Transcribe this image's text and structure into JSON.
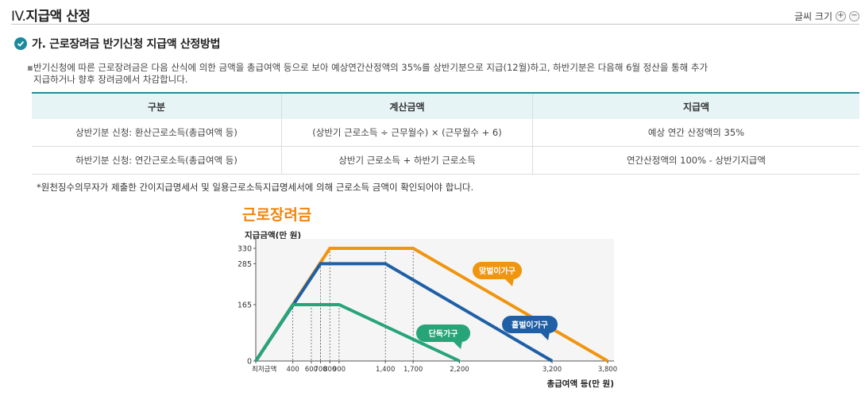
{
  "section": {
    "roman": "IV.",
    "title": "지급액 산정",
    "font_size_label": "글씨 크기",
    "plus": "+",
    "minus": "−"
  },
  "subheading": {
    "title": "가. 근로장려금 반기신청 지급액 산정방법"
  },
  "description": {
    "bullet": "▪",
    "line1": "반기신청에 따른 근로장려금은 다음 산식에 의한 금액을 총급여액 등으로 보아 예상연간산정액의 35%를 상반기분으로 지급(12월)하고, 하반기분은 다음해 6월 정산을 통해 추가",
    "line2": "지급하거나 향후 장려금에서 차감합니다."
  },
  "table": {
    "headers": [
      "구분",
      "계산금액",
      "지급액"
    ],
    "rows": [
      [
        "상반기분 신청: 환산근로소득(총급여액 등)",
        "(상반기 근로소득 ÷ 근무월수) × (근무월수 + 6)",
        "예상 연간 산정액의 35%"
      ],
      [
        "하반기분 신청: 연간근로소득(총급여액 등)",
        "상반기 근로소득 + 하반기 근로소득",
        "연간산정액의 100% - 상반기지급액"
      ]
    ]
  },
  "note": "*원천징수의무자가 제출한 간이지급명세서 및 일용근로소득지급명세서에 의해 근로소득 금액이 확인되어야 합니다.",
  "chart_data": {
    "type": "line",
    "title": "근로장려금",
    "ylabel": "지급금액(만 원)",
    "xlabel": "총급여액 등(만 원)",
    "y_ticks": [
      0,
      165,
      285,
      330
    ],
    "x_ticks": [
      {
        "value": 0,
        "label": "최저금액"
      },
      {
        "value": 400,
        "label": "400"
      },
      {
        "value": 600,
        "label": "600"
      },
      {
        "value": 700,
        "label": "700"
      },
      {
        "value": 800,
        "label": "800"
      },
      {
        "value": 900,
        "label": "900"
      },
      {
        "value": 1400,
        "label": "1,400"
      },
      {
        "value": 1700,
        "label": "1,700"
      },
      {
        "value": 2200,
        "label": "2,200"
      },
      {
        "value": 3200,
        "label": "3,200"
      },
      {
        "value": 3800,
        "label": "3,800"
      }
    ],
    "guide_lines": [
      {
        "x": 400,
        "y": 165
      },
      {
        "x": 600,
        "y": 165
      },
      {
        "x": 700,
        "y": 165
      },
      {
        "x": 700,
        "y": 285
      },
      {
        "x": 800,
        "y": 330
      },
      {
        "x": 900,
        "y": 165
      },
      {
        "x": 1400,
        "y": 330
      },
      {
        "x": 1700,
        "y": 330
      }
    ],
    "series": [
      {
        "name": "맞벌이가구",
        "color": "#f0950f",
        "points": [
          [
            0,
            0
          ],
          [
            800,
            330
          ],
          [
            1700,
            330
          ],
          [
            3800,
            0
          ]
        ]
      },
      {
        "name": "홑벌이가구",
        "color": "#1f5fa6",
        "points": [
          [
            0,
            0
          ],
          [
            700,
            285
          ],
          [
            1400,
            285
          ],
          [
            3200,
            0
          ]
        ]
      },
      {
        "name": "단독가구",
        "color": "#27a478",
        "points": [
          [
            0,
            0
          ],
          [
            400,
            165
          ],
          [
            900,
            165
          ],
          [
            2200,
            0
          ]
        ]
      }
    ],
    "ylim": [
      0,
      340
    ]
  },
  "colors": {
    "accent": "#1b8a9c",
    "table_header_bg": "#e6f4f6",
    "title_orange": "#f0850f"
  }
}
